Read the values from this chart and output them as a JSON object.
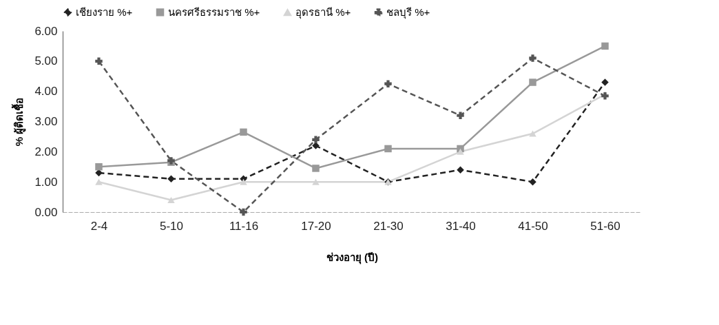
{
  "chart_data": {
    "type": "line",
    "xlabel": "ช่วงอายุ (ปี)",
    "ylabel": "% ผู้ติดเชื้อ",
    "categories": [
      "2-4",
      "5-10",
      "11-16",
      "17-20",
      "21-30",
      "31-40",
      "41-50",
      "51-60"
    ],
    "series": [
      {
        "name": "เชียงราย %+",
        "color": "#222222",
        "marker": "diamond",
        "line_style": "dashed",
        "values": [
          1.3,
          1.1,
          1.1,
          2.2,
          1.0,
          1.4,
          1.0,
          4.3
        ]
      },
      {
        "name": "นครศรีธรรมราช %+",
        "color": "#999999",
        "marker": "square",
        "line_style": "solid",
        "values": [
          1.5,
          1.65,
          2.65,
          1.45,
          2.1,
          2.1,
          4.3,
          5.5
        ]
      },
      {
        "name": "อุดรธานี %+",
        "color": "#d4d4d4",
        "marker": "triangle",
        "line_style": "solid",
        "values": [
          1.0,
          0.4,
          1.0,
          1.0,
          1.0,
          2.0,
          2.6,
          3.9
        ]
      },
      {
        "name": "ชลบุรี %+",
        "color": "#555555",
        "marker": "cross",
        "line_style": "dashed",
        "values": [
          5.0,
          1.7,
          0.0,
          2.4,
          4.25,
          3.2,
          5.1,
          3.85
        ]
      }
    ],
    "ylim": [
      0,
      6
    ],
    "yticks": [
      {
        "value": 0,
        "label": "0.00"
      },
      {
        "value": 1,
        "label": "1.00"
      },
      {
        "value": 2,
        "label": "2.00"
      },
      {
        "value": 3,
        "label": "3.00"
      },
      {
        "value": 4,
        "label": "4.00"
      },
      {
        "value": 5,
        "label": "5.00"
      },
      {
        "value": 6,
        "label": "6.00"
      }
    ],
    "grid": false,
    "legend": "top"
  }
}
